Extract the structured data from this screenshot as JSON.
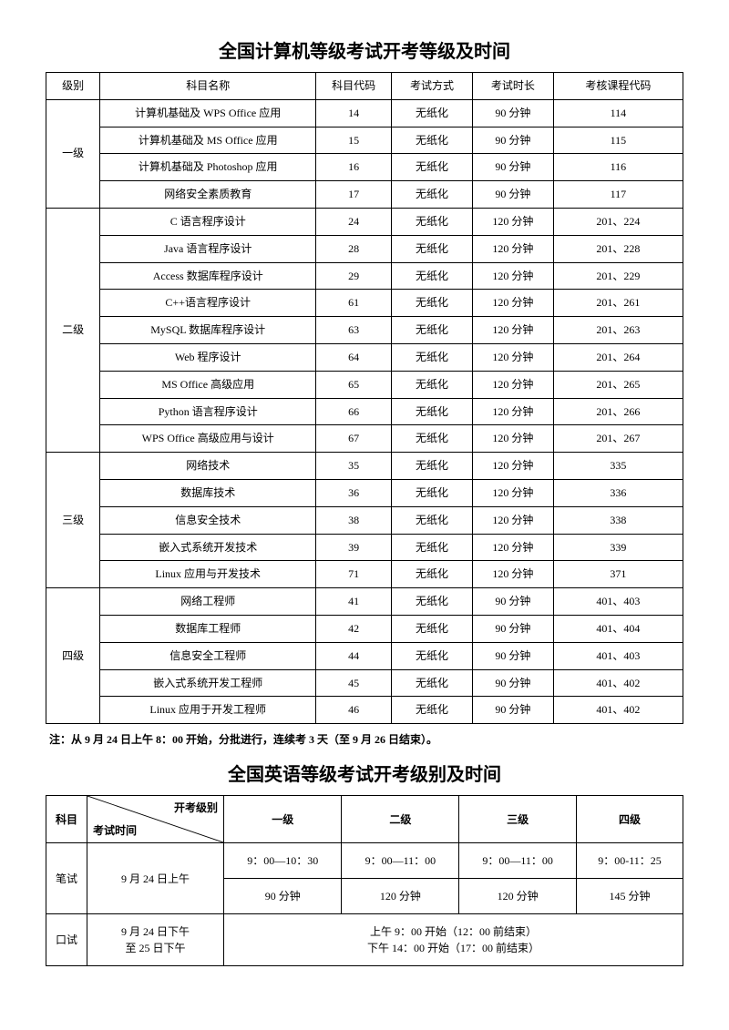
{
  "title1": "全国计算机等级考试开考等级及时间",
  "headers1": {
    "level": "级别",
    "subject": "科目名称",
    "code": "科目代码",
    "mode": "考试方式",
    "duration": "考试时长",
    "course": "考核课程代码"
  },
  "groups": [
    {
      "level": "一级",
      "rows": [
        {
          "name": "计算机基础及 WPS Office 应用",
          "code": "14",
          "mode": "无纸化",
          "dur": "90 分钟",
          "course": "114"
        },
        {
          "name": "计算机基础及 MS Office 应用",
          "code": "15",
          "mode": "无纸化",
          "dur": "90 分钟",
          "course": "115"
        },
        {
          "name": "计算机基础及 Photoshop 应用",
          "code": "16",
          "mode": "无纸化",
          "dur": "90 分钟",
          "course": "116"
        },
        {
          "name": "网络安全素质教育",
          "code": "17",
          "mode": "无纸化",
          "dur": "90 分钟",
          "course": "117"
        }
      ]
    },
    {
      "level": "二级",
      "rows": [
        {
          "name": "C 语言程序设计",
          "code": "24",
          "mode": "无纸化",
          "dur": "120 分钟",
          "course": "201、224"
        },
        {
          "name": "Java 语言程序设计",
          "code": "28",
          "mode": "无纸化",
          "dur": "120 分钟",
          "course": "201、228"
        },
        {
          "name": "Access 数据库程序设计",
          "code": "29",
          "mode": "无纸化",
          "dur": "120 分钟",
          "course": "201、229"
        },
        {
          "name": "C++语言程序设计",
          "code": "61",
          "mode": "无纸化",
          "dur": "120 分钟",
          "course": "201、261"
        },
        {
          "name": "MySQL 数据库程序设计",
          "code": "63",
          "mode": "无纸化",
          "dur": "120 分钟",
          "course": "201、263"
        },
        {
          "name": "Web 程序设计",
          "code": "64",
          "mode": "无纸化",
          "dur": "120 分钟",
          "course": "201、264"
        },
        {
          "name": "MS Office 高级应用",
          "code": "65",
          "mode": "无纸化",
          "dur": "120 分钟",
          "course": "201、265"
        },
        {
          "name": "Python 语言程序设计",
          "code": "66",
          "mode": "无纸化",
          "dur": "120 分钟",
          "course": "201、266"
        },
        {
          "name": "WPS Office 高级应用与设计",
          "code": "67",
          "mode": "无纸化",
          "dur": "120 分钟",
          "course": "201、267"
        }
      ]
    },
    {
      "level": "三级",
      "rows": [
        {
          "name": "网络技术",
          "code": "35",
          "mode": "无纸化",
          "dur": "120 分钟",
          "course": "335"
        },
        {
          "name": "数据库技术",
          "code": "36",
          "mode": "无纸化",
          "dur": "120 分钟",
          "course": "336"
        },
        {
          "name": "信息安全技术",
          "code": "38",
          "mode": "无纸化",
          "dur": "120 分钟",
          "course": "338"
        },
        {
          "name": "嵌入式系统开发技术",
          "code": "39",
          "mode": "无纸化",
          "dur": "120 分钟",
          "course": "339"
        },
        {
          "name": "Linux 应用与开发技术",
          "code": "71",
          "mode": "无纸化",
          "dur": "120 分钟",
          "course": "371"
        }
      ]
    },
    {
      "level": "四级",
      "rows": [
        {
          "name": "网络工程师",
          "code": "41",
          "mode": "无纸化",
          "dur": "90 分钟",
          "course": "401、403"
        },
        {
          "name": "数据库工程师",
          "code": "42",
          "mode": "无纸化",
          "dur": "90 分钟",
          "course": "401、404"
        },
        {
          "name": "信息安全工程师",
          "code": "44",
          "mode": "无纸化",
          "dur": "90 分钟",
          "course": "401、403"
        },
        {
          "name": "嵌入式系统开发工程师",
          "code": "45",
          "mode": "无纸化",
          "dur": "90 分钟",
          "course": "401、402"
        },
        {
          "name": "Linux 应用于开发工程师",
          "code": "46",
          "mode": "无纸化",
          "dur": "90 分钟",
          "course": "401、402"
        }
      ]
    }
  ],
  "note": "注：从 9 月 24 日上午 8：00 开始，分批进行，连续考 3 天（至 9 月 26 日结束）。",
  "title2": "全国英语等级考试开考级别及时间",
  "eng": {
    "diag_top": "开考级别",
    "diag_bot": "考试时间",
    "subject_h": "科目",
    "levels": [
      "一级",
      "二级",
      "三级",
      "四级"
    ],
    "written": {
      "label": "笔试",
      "time": "9 月 24 日上午",
      "row1": [
        "9：00—10：30",
        "9：00—11：00",
        "9：00—11：00",
        "9：00-11：25"
      ],
      "row2": [
        "90 分钟",
        "120 分钟",
        "120 分钟",
        "145 分钟"
      ]
    },
    "oral": {
      "label": "口试",
      "time1": "9 月 24 日下午",
      "time2": "至 25 日下午",
      "line1": "上午 9：00 开始（12：00 前结束）",
      "line2": "下午 14：00 开始（17：00 前结束）"
    }
  }
}
